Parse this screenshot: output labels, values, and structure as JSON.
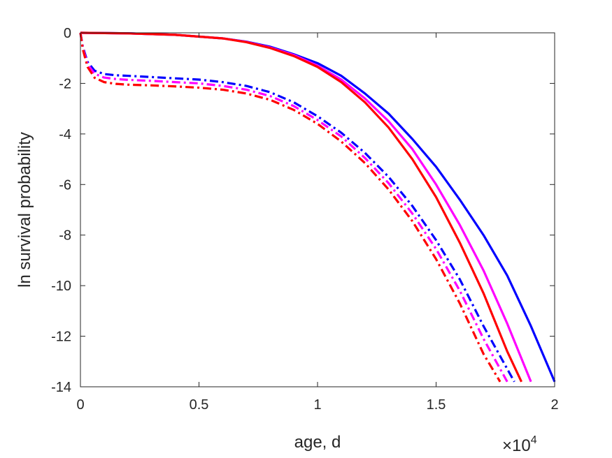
{
  "chart_data": {
    "type": "line",
    "title": "",
    "xlabel": "age, d",
    "ylabel": "ln survival probability",
    "x_exponent_label": {
      "base": "×10",
      "exp": "4"
    },
    "xlim": [
      0,
      2
    ],
    "ylim": [
      -14,
      0
    ],
    "xticks": [
      0,
      0.5,
      1,
      1.5,
      2
    ],
    "xtick_labels": [
      "0",
      "0.5",
      "1",
      "1.5",
      "2"
    ],
    "yticks": [
      0,
      -2,
      -4,
      -6,
      -8,
      -10,
      -12,
      -14
    ],
    "ytick_labels": [
      "0",
      "-2",
      "-4",
      "-6",
      "-8",
      "-10",
      "-12",
      "-14"
    ],
    "grid": false,
    "legend": "none",
    "series": [
      {
        "color": "#0000ff",
        "style": "solid",
        "x": [
          0,
          0.2,
          0.4,
          0.6,
          0.7,
          0.8,
          0.9,
          1.0,
          1.1,
          1.2,
          1.3,
          1.4,
          1.5,
          1.6,
          1.7,
          1.8,
          1.9,
          2.0
        ],
        "y": [
          0,
          -0.02,
          -0.08,
          -0.22,
          -0.35,
          -0.55,
          -0.85,
          -1.2,
          -1.7,
          -2.4,
          -3.2,
          -4.2,
          -5.3,
          -6.6,
          -8.0,
          -9.6,
          -11.6,
          -13.8
        ]
      },
      {
        "color": "#ff00ff",
        "style": "solid",
        "x": [
          0,
          0.2,
          0.4,
          0.6,
          0.7,
          0.8,
          0.9,
          1.0,
          1.1,
          1.2,
          1.3,
          1.4,
          1.5,
          1.6,
          1.7,
          1.8,
          1.9
        ],
        "y": [
          0,
          -0.02,
          -0.08,
          -0.22,
          -0.36,
          -0.58,
          -0.88,
          -1.3,
          -1.85,
          -2.6,
          -3.5,
          -4.6,
          -6.0,
          -7.6,
          -9.4,
          -11.5,
          -13.8
        ]
      },
      {
        "color": "#ff0000",
        "style": "solid",
        "x": [
          0,
          0.2,
          0.4,
          0.6,
          0.7,
          0.8,
          0.9,
          1.0,
          1.1,
          1.2,
          1.3,
          1.4,
          1.5,
          1.6,
          1.7,
          1.8,
          1.86
        ],
        "y": [
          0,
          -0.02,
          -0.08,
          -0.22,
          -0.37,
          -0.6,
          -0.92,
          -1.35,
          -1.95,
          -2.75,
          -3.75,
          -5.0,
          -6.5,
          -8.3,
          -10.3,
          -12.6,
          -13.8
        ]
      },
      {
        "color": "#0000ff",
        "style": "dashdot",
        "x": [
          0,
          0.01,
          0.03,
          0.06,
          0.1,
          0.15,
          0.2,
          0.3,
          0.4,
          0.5,
          0.6,
          0.7,
          0.8,
          0.9,
          1.0,
          1.1,
          1.2,
          1.3,
          1.4,
          1.5,
          1.6,
          1.7,
          1.83
        ],
        "y": [
          0,
          -0.55,
          -1.15,
          -1.5,
          -1.63,
          -1.68,
          -1.7,
          -1.75,
          -1.8,
          -1.85,
          -1.95,
          -2.1,
          -2.35,
          -2.75,
          -3.3,
          -3.95,
          -4.75,
          -5.7,
          -6.85,
          -8.2,
          -9.75,
          -11.6,
          -13.8
        ]
      },
      {
        "color": "#ff00ff",
        "style": "dashdot",
        "x": [
          0,
          0.01,
          0.03,
          0.06,
          0.1,
          0.15,
          0.2,
          0.3,
          0.4,
          0.5,
          0.6,
          0.7,
          0.8,
          0.9,
          1.0,
          1.1,
          1.2,
          1.3,
          1.4,
          1.5,
          1.6,
          1.7,
          1.8
        ],
        "y": [
          0,
          -0.6,
          -1.25,
          -1.62,
          -1.77,
          -1.83,
          -1.86,
          -1.9,
          -1.95,
          -2.0,
          -2.1,
          -2.25,
          -2.5,
          -2.9,
          -3.45,
          -4.1,
          -4.95,
          -5.95,
          -7.15,
          -8.55,
          -10.2,
          -12.1,
          -13.8
        ]
      },
      {
        "color": "#ff0000",
        "style": "dashdot",
        "x": [
          0,
          0.01,
          0.03,
          0.06,
          0.1,
          0.15,
          0.2,
          0.3,
          0.4,
          0.5,
          0.6,
          0.7,
          0.8,
          0.9,
          1.0,
          1.1,
          1.2,
          1.3,
          1.4,
          1.5,
          1.6,
          1.7,
          1.77
        ],
        "y": [
          0,
          -0.65,
          -1.35,
          -1.78,
          -1.95,
          -2.02,
          -2.05,
          -2.08,
          -2.12,
          -2.17,
          -2.25,
          -2.4,
          -2.65,
          -3.05,
          -3.6,
          -4.3,
          -5.15,
          -6.2,
          -7.45,
          -8.95,
          -10.7,
          -12.7,
          -13.8
        ]
      }
    ]
  }
}
